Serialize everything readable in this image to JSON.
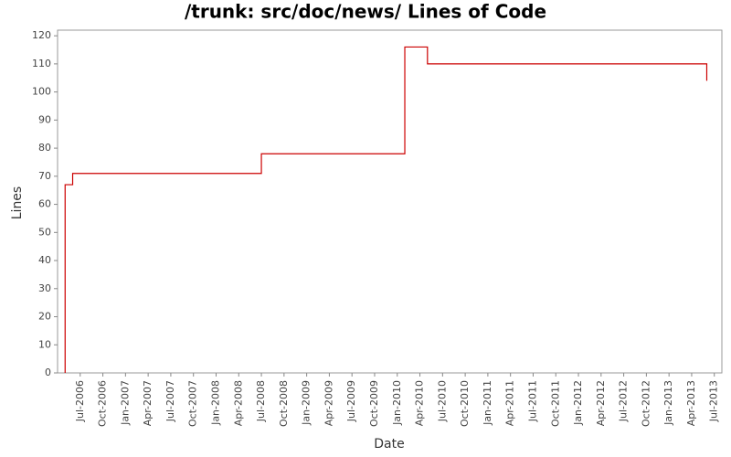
{
  "chart_data": {
    "type": "line",
    "title": "/trunk: src/doc/news/ Lines of Code",
    "x_label": "Date",
    "y_label": "Lines",
    "x": [
      "2006-05",
      "2006-05",
      "2006-06",
      "2006-06",
      "2008-07",
      "2008-07",
      "2010-02",
      "2010-02",
      "2010-05",
      "2010-05",
      "2013-06",
      "2013-06"
    ],
    "series": [
      {
        "name": "Lines",
        "color": "#cc0000",
        "values": [
          0,
          67,
          67,
          71,
          71,
          78,
          78,
          116,
          116,
          110,
          110,
          104
        ]
      }
    ],
    "xlim": [
      "2006-04",
      "2013-08"
    ],
    "xticks": [
      {
        "value": "2006-07",
        "label": "Jul-2006"
      },
      {
        "value": "2006-10",
        "label": "Oct-2006"
      },
      {
        "value": "2007-01",
        "label": "Jan-2007"
      },
      {
        "value": "2007-04",
        "label": "Apr-2007"
      },
      {
        "value": "2007-07",
        "label": "Jul-2007"
      },
      {
        "value": "2007-10",
        "label": "Oct-2007"
      },
      {
        "value": "2008-01",
        "label": "Jan-2008"
      },
      {
        "value": "2008-04",
        "label": "Apr-2008"
      },
      {
        "value": "2008-07",
        "label": "Jul-2008"
      },
      {
        "value": "2008-10",
        "label": "Oct-2008"
      },
      {
        "value": "2009-01",
        "label": "Jan-2009"
      },
      {
        "value": "2009-04",
        "label": "Apr-2009"
      },
      {
        "value": "2009-07",
        "label": "Jul-2009"
      },
      {
        "value": "2009-10",
        "label": "Oct-2009"
      },
      {
        "value": "2010-01",
        "label": "Jan-2010"
      },
      {
        "value": "2010-04",
        "label": "Apr-2010"
      },
      {
        "value": "2010-07",
        "label": "Jul-2010"
      },
      {
        "value": "2010-10",
        "label": "Oct-2010"
      },
      {
        "value": "2011-01",
        "label": "Jan-2011"
      },
      {
        "value": "2011-04",
        "label": "Apr-2011"
      },
      {
        "value": "2011-07",
        "label": "Jul-2011"
      },
      {
        "value": "2011-10",
        "label": "Oct-2011"
      },
      {
        "value": "2012-01",
        "label": "Jan-2012"
      },
      {
        "value": "2012-04",
        "label": "Apr-2012"
      },
      {
        "value": "2012-07",
        "label": "Jul-2012"
      },
      {
        "value": "2012-10",
        "label": "Oct-2012"
      },
      {
        "value": "2013-01",
        "label": "Jan-2013"
      },
      {
        "value": "2013-04",
        "label": "Apr-2013"
      },
      {
        "value": "2013-07",
        "label": "Jul-2013"
      }
    ],
    "ylim": [
      0,
      122
    ],
    "yticks": [
      0,
      10,
      20,
      30,
      40,
      50,
      60,
      70,
      80,
      90,
      100,
      110,
      120
    ],
    "grid": false
  }
}
